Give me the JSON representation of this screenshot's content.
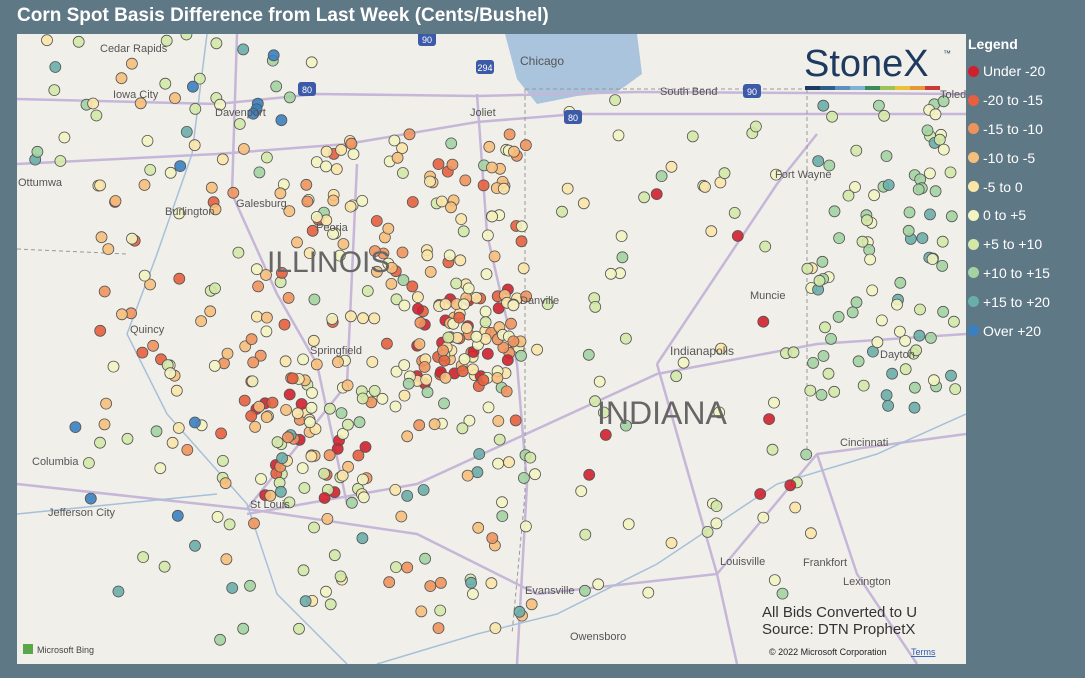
{
  "header": {
    "title": "Corn Spot Basis Difference from Last Week (Cents/Bushel)"
  },
  "logo": {
    "text": "StoneX",
    "mark": "™"
  },
  "legend": {
    "title": "Legend",
    "items": [
      {
        "label": "Under -20",
        "color": "#d0202e"
      },
      {
        "label": "-20 to -15",
        "color": "#e6603f"
      },
      {
        "label": "-15 to -10",
        "color": "#ef935e"
      },
      {
        "label": "-10 to -5",
        "color": "#f7bf7c"
      },
      {
        "label": "-5 to 0",
        "color": "#fbe6a8"
      },
      {
        "label": "0 to +5",
        "color": "#f3f4c2"
      },
      {
        "label": "+5 to +10",
        "color": "#d3e8a7"
      },
      {
        "label": "+10 to +15",
        "color": "#a3d3a2"
      },
      {
        "label": "+15 to +20",
        "color": "#6aaeaa"
      },
      {
        "label": "Over +20",
        "color": "#3a80c0"
      }
    ]
  },
  "map": {
    "labels": [
      "Cedar Rapids",
      "Iowa City",
      "Davenport",
      "Ottumwa",
      "Burlington",
      "Galesburg",
      "Peoria",
      "ILLINOIS",
      "Joliet",
      "Chicago",
      "South Bend",
      "Fort Wayne",
      "Toled",
      "Danville",
      "Muncie",
      "Indianapolis",
      "Dayton",
      "Quincy",
      "Springfield",
      "INDIANA",
      "Cincinnati",
      "Columbia",
      "Jefferson City",
      "St Louis",
      "Evansville",
      "Owensboro",
      "Louisville",
      "Frankfort",
      "Lexington"
    ],
    "highways": [
      "90",
      "294",
      "80",
      "80",
      "90"
    ]
  },
  "notes": [
    "All Bids Converted to U",
    "Source: DTN ProphetX"
  ],
  "footer": {
    "brand": "Microsoft Bing",
    "copyright": "© 2022 Microsoft Corporation",
    "terms": "Terms"
  }
}
